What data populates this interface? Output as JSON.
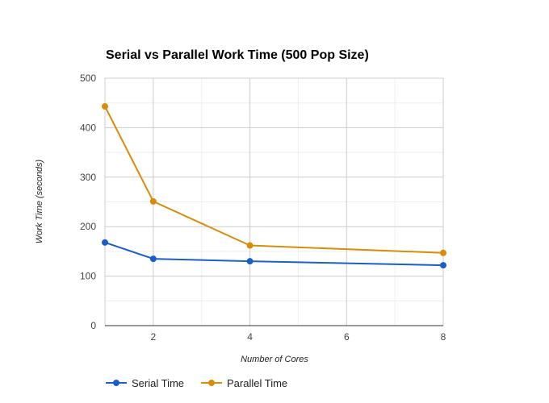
{
  "chart_data": {
    "type": "line",
    "title": "Serial vs Parallel Work Time (500 Pop Size)",
    "xlabel": "Number of Cores",
    "ylabel": "Work Time (seconds)",
    "x": [
      1,
      2,
      4,
      8
    ],
    "xlim": [
      1,
      8
    ],
    "ylim": [
      0,
      500
    ],
    "xticks": [
      2,
      4,
      6,
      8
    ],
    "yticks": [
      0,
      100,
      200,
      300,
      400,
      500
    ],
    "grid": true,
    "legend_position": "bottom-left",
    "series": [
      {
        "name": "Serial Time",
        "values": [
          168,
          135,
          130,
          122
        ],
        "color": "#1a5fc8"
      },
      {
        "name": "Parallel Time",
        "values": [
          443,
          251,
          162,
          147
        ],
        "color": "#d98c0b"
      }
    ]
  }
}
